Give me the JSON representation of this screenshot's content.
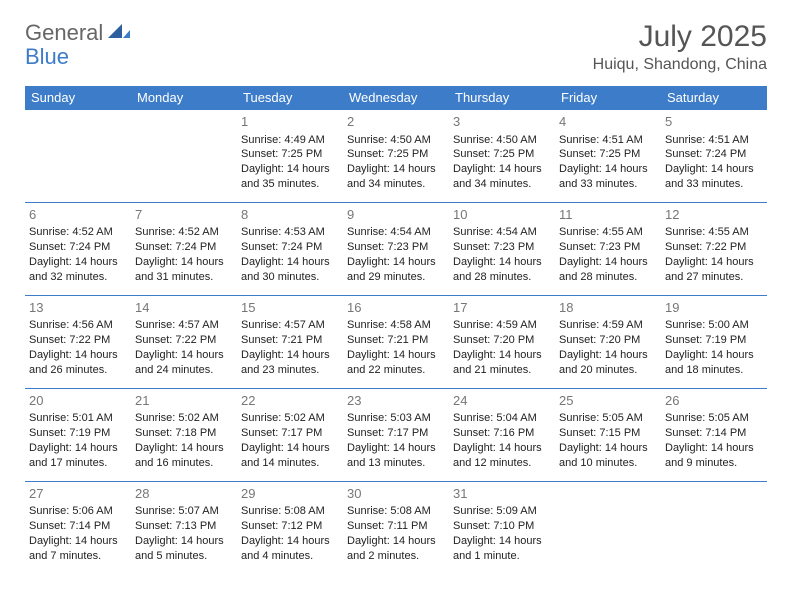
{
  "logo": {
    "general": "General",
    "blue": "Blue"
  },
  "header": {
    "month_title": "July 2025",
    "location": "Huiqu, Shandong, China"
  },
  "colors": {
    "header_bg": "#3d7cc9",
    "header_text": "#ffffff",
    "border": "#3d7cc9",
    "daynum": "#777777",
    "body_text": "#222222",
    "logo_gray": "#666666",
    "logo_blue": "#3d7cc9"
  },
  "calendar": {
    "day_headers": [
      "Sunday",
      "Monday",
      "Tuesday",
      "Wednesday",
      "Thursday",
      "Friday",
      "Saturday"
    ],
    "weeks": [
      [
        null,
        null,
        {
          "n": "1",
          "sunrise": "Sunrise: 4:49 AM",
          "sunset": "Sunset: 7:25 PM",
          "daylight": "Daylight: 14 hours and 35 minutes."
        },
        {
          "n": "2",
          "sunrise": "Sunrise: 4:50 AM",
          "sunset": "Sunset: 7:25 PM",
          "daylight": "Daylight: 14 hours and 34 minutes."
        },
        {
          "n": "3",
          "sunrise": "Sunrise: 4:50 AM",
          "sunset": "Sunset: 7:25 PM",
          "daylight": "Daylight: 14 hours and 34 minutes."
        },
        {
          "n": "4",
          "sunrise": "Sunrise: 4:51 AM",
          "sunset": "Sunset: 7:25 PM",
          "daylight": "Daylight: 14 hours and 33 minutes."
        },
        {
          "n": "5",
          "sunrise": "Sunrise: 4:51 AM",
          "sunset": "Sunset: 7:24 PM",
          "daylight": "Daylight: 14 hours and 33 minutes."
        }
      ],
      [
        {
          "n": "6",
          "sunrise": "Sunrise: 4:52 AM",
          "sunset": "Sunset: 7:24 PM",
          "daylight": "Daylight: 14 hours and 32 minutes."
        },
        {
          "n": "7",
          "sunrise": "Sunrise: 4:52 AM",
          "sunset": "Sunset: 7:24 PM",
          "daylight": "Daylight: 14 hours and 31 minutes."
        },
        {
          "n": "8",
          "sunrise": "Sunrise: 4:53 AM",
          "sunset": "Sunset: 7:24 PM",
          "daylight": "Daylight: 14 hours and 30 minutes."
        },
        {
          "n": "9",
          "sunrise": "Sunrise: 4:54 AM",
          "sunset": "Sunset: 7:23 PM",
          "daylight": "Daylight: 14 hours and 29 minutes."
        },
        {
          "n": "10",
          "sunrise": "Sunrise: 4:54 AM",
          "sunset": "Sunset: 7:23 PM",
          "daylight": "Daylight: 14 hours and 28 minutes."
        },
        {
          "n": "11",
          "sunrise": "Sunrise: 4:55 AM",
          "sunset": "Sunset: 7:23 PM",
          "daylight": "Daylight: 14 hours and 28 minutes."
        },
        {
          "n": "12",
          "sunrise": "Sunrise: 4:55 AM",
          "sunset": "Sunset: 7:22 PM",
          "daylight": "Daylight: 14 hours and 27 minutes."
        }
      ],
      [
        {
          "n": "13",
          "sunrise": "Sunrise: 4:56 AM",
          "sunset": "Sunset: 7:22 PM",
          "daylight": "Daylight: 14 hours and 26 minutes."
        },
        {
          "n": "14",
          "sunrise": "Sunrise: 4:57 AM",
          "sunset": "Sunset: 7:22 PM",
          "daylight": "Daylight: 14 hours and 24 minutes."
        },
        {
          "n": "15",
          "sunrise": "Sunrise: 4:57 AM",
          "sunset": "Sunset: 7:21 PM",
          "daylight": "Daylight: 14 hours and 23 minutes."
        },
        {
          "n": "16",
          "sunrise": "Sunrise: 4:58 AM",
          "sunset": "Sunset: 7:21 PM",
          "daylight": "Daylight: 14 hours and 22 minutes."
        },
        {
          "n": "17",
          "sunrise": "Sunrise: 4:59 AM",
          "sunset": "Sunset: 7:20 PM",
          "daylight": "Daylight: 14 hours and 21 minutes."
        },
        {
          "n": "18",
          "sunrise": "Sunrise: 4:59 AM",
          "sunset": "Sunset: 7:20 PM",
          "daylight": "Daylight: 14 hours and 20 minutes."
        },
        {
          "n": "19",
          "sunrise": "Sunrise: 5:00 AM",
          "sunset": "Sunset: 7:19 PM",
          "daylight": "Daylight: 14 hours and 18 minutes."
        }
      ],
      [
        {
          "n": "20",
          "sunrise": "Sunrise: 5:01 AM",
          "sunset": "Sunset: 7:19 PM",
          "daylight": "Daylight: 14 hours and 17 minutes."
        },
        {
          "n": "21",
          "sunrise": "Sunrise: 5:02 AM",
          "sunset": "Sunset: 7:18 PM",
          "daylight": "Daylight: 14 hours and 16 minutes."
        },
        {
          "n": "22",
          "sunrise": "Sunrise: 5:02 AM",
          "sunset": "Sunset: 7:17 PM",
          "daylight": "Daylight: 14 hours and 14 minutes."
        },
        {
          "n": "23",
          "sunrise": "Sunrise: 5:03 AM",
          "sunset": "Sunset: 7:17 PM",
          "daylight": "Daylight: 14 hours and 13 minutes."
        },
        {
          "n": "24",
          "sunrise": "Sunrise: 5:04 AM",
          "sunset": "Sunset: 7:16 PM",
          "daylight": "Daylight: 14 hours and 12 minutes."
        },
        {
          "n": "25",
          "sunrise": "Sunrise: 5:05 AM",
          "sunset": "Sunset: 7:15 PM",
          "daylight": "Daylight: 14 hours and 10 minutes."
        },
        {
          "n": "26",
          "sunrise": "Sunrise: 5:05 AM",
          "sunset": "Sunset: 7:14 PM",
          "daylight": "Daylight: 14 hours and 9 minutes."
        }
      ],
      [
        {
          "n": "27",
          "sunrise": "Sunrise: 5:06 AM",
          "sunset": "Sunset: 7:14 PM",
          "daylight": "Daylight: 14 hours and 7 minutes."
        },
        {
          "n": "28",
          "sunrise": "Sunrise: 5:07 AM",
          "sunset": "Sunset: 7:13 PM",
          "daylight": "Daylight: 14 hours and 5 minutes."
        },
        {
          "n": "29",
          "sunrise": "Sunrise: 5:08 AM",
          "sunset": "Sunset: 7:12 PM",
          "daylight": "Daylight: 14 hours and 4 minutes."
        },
        {
          "n": "30",
          "sunrise": "Sunrise: 5:08 AM",
          "sunset": "Sunset: 7:11 PM",
          "daylight": "Daylight: 14 hours and 2 minutes."
        },
        {
          "n": "31",
          "sunrise": "Sunrise: 5:09 AM",
          "sunset": "Sunset: 7:10 PM",
          "daylight": "Daylight: 14 hours and 1 minute."
        },
        null,
        null
      ]
    ]
  }
}
